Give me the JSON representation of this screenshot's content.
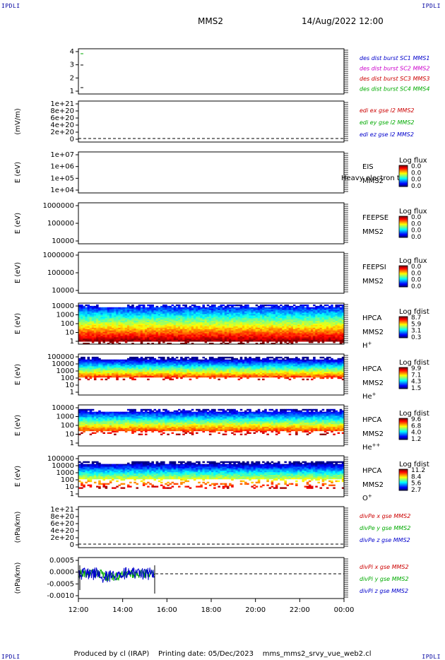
{
  "corner_label": "IPDLI",
  "header": {
    "spacecraft": "MMS2",
    "datetime": "14/Aug/2022 12:00"
  },
  "footer": {
    "produced_by": "Produced by cl (IRAP)",
    "printing_date": "Printing date: 05/Dec/2023",
    "file": "mms_mms2_srvy_vue_web2.cl"
  },
  "colors": {
    "red": "#cc0000",
    "green": "#00aa00",
    "blue": "#0000cc",
    "magenta": "#cc00cc"
  },
  "chart_data": [
    {
      "type": "line",
      "id": "burst",
      "ylabel": "",
      "yticks": [
        "4",
        "3",
        "2",
        "1"
      ],
      "legend": [
        {
          "label": "des dist burst SC1 MMS1",
          "color": "#0000cc"
        },
        {
          "label": "des dist burst SC2 MMS2",
          "color": "#cc00cc"
        },
        {
          "label": "des dist burst SC3 MMS3",
          "color": "#cc0000"
        },
        {
          "label": "des dist burst SC4 MMS4",
          "color": "#00aa00"
        }
      ]
    },
    {
      "type": "line",
      "id": "edi",
      "ylabel": "(mV/m)",
      "yticks": [
        "1e+21",
        "8e+20",
        "6e+20",
        "4e+20",
        "2e+20",
        "0"
      ],
      "legend": [
        {
          "label": "edi ex gse l2 MMS2",
          "color": "#cc0000"
        },
        {
          "label": "edi ey gse l2 MMS2",
          "color": "#00aa00"
        },
        {
          "label": "edi ez gse l2 MMS2",
          "color": "#0000cc"
        }
      ]
    },
    {
      "type": "heatmap",
      "id": "eis",
      "ylabel": "E (eV)",
      "yticks": [
        "1e+07",
        "1e+06",
        "1e+05",
        "1e+04"
      ],
      "instrument": "EIS",
      "sc": "MMS2",
      "overlay": "Heavy electron to",
      "cb_title": "Log flux",
      "cb_ticks": [
        "0.0",
        "0.0",
        "0.0",
        "0.0"
      ]
    },
    {
      "type": "heatmap",
      "id": "feepse",
      "ylabel": "E (eV)",
      "yticks": [
        "1000000",
        "100000",
        "10000"
      ],
      "instrument": "FEEPSE",
      "sc": "MMS2",
      "cb_title": "Log flux",
      "cb_ticks": [
        "0.0",
        "0.0",
        "0.0",
        "0.0"
      ]
    },
    {
      "type": "heatmap",
      "id": "feepsi",
      "ylabel": "E (eV)",
      "yticks": [
        "1000000",
        "100000",
        "10000"
      ],
      "instrument": "FEEPSI",
      "sc": "MMS2",
      "cb_title": "Log flux",
      "cb_ticks": [
        "0.0",
        "0.0",
        "0.0",
        "0.0"
      ]
    },
    {
      "type": "heatmap",
      "id": "hpca_h",
      "ylabel": "E (eV)",
      "yticks": [
        "10000",
        "1000",
        "100",
        "10",
        "1"
      ],
      "instrument": "HPCA",
      "sc": "MMS2",
      "species": "H",
      "species_sup": "+",
      "cb_title": "Log fdist",
      "cb_ticks": [
        "8.7",
        "5.9",
        "3.1",
        "0.3"
      ]
    },
    {
      "type": "heatmap",
      "id": "hpca_he",
      "ylabel": "E (eV)",
      "yticks": [
        "100000",
        "10000",
        "1000",
        "100",
        "10",
        "1"
      ],
      "instrument": "HPCA",
      "sc": "MMS2",
      "species": "He",
      "species_sup": "+",
      "cb_title": "Log fdist",
      "cb_ticks": [
        "9.9",
        "7.1",
        "4.3",
        "1.5"
      ]
    },
    {
      "type": "heatmap",
      "id": "hpca_hepp",
      "ylabel": "E (eV)",
      "yticks": [
        "10000",
        "1000",
        "100",
        "10",
        "1"
      ],
      "instrument": "HPCA",
      "sc": "MMS2",
      "species": "He",
      "species_sup": "++",
      "cb_title": "Log fdist",
      "cb_ticks": [
        "9.6",
        "6.8",
        "4.0",
        "1.2"
      ]
    },
    {
      "type": "heatmap",
      "id": "hpca_o",
      "ylabel": "E (eV)",
      "yticks": [
        "100000",
        "10000",
        "1000",
        "100",
        "10",
        "1"
      ],
      "instrument": "HPCA",
      "sc": "MMS2",
      "species": "O",
      "species_sup": "+",
      "cb_title": "Log fdist",
      "cb_ticks": [
        "11.2",
        "8.4",
        "5.6",
        "2.7"
      ]
    },
    {
      "type": "line",
      "id": "divpe",
      "ylabel": "(nPa/km)",
      "yticks": [
        "1e+21",
        "8e+20",
        "6e+20",
        "4e+20",
        "2e+20",
        "0"
      ],
      "legend": [
        {
          "label": "divPe x gse MMS2",
          "color": "#cc0000"
        },
        {
          "label": "divPe y gse MMS2",
          "color": "#00aa00"
        },
        {
          "label": "divPe z gse MMS2",
          "color": "#0000cc"
        }
      ]
    },
    {
      "type": "line",
      "id": "divpi",
      "ylabel": "(nPa/km)",
      "yticks": [
        "0.0005",
        "0.0000",
        "-0.0005",
        "-0.0010"
      ],
      "legend": [
        {
          "label": "divPi x gse MMS2",
          "color": "#cc0000"
        },
        {
          "label": "divPi y gse MMS2",
          "color": "#00aa00"
        },
        {
          "label": "divPi z gse MMS2",
          "color": "#0000cc"
        }
      ]
    }
  ],
  "xaxis": {
    "ticks": [
      "12:00",
      "14:00",
      "16:00",
      "18:00",
      "20:00",
      "22:00",
      "00:00"
    ]
  }
}
